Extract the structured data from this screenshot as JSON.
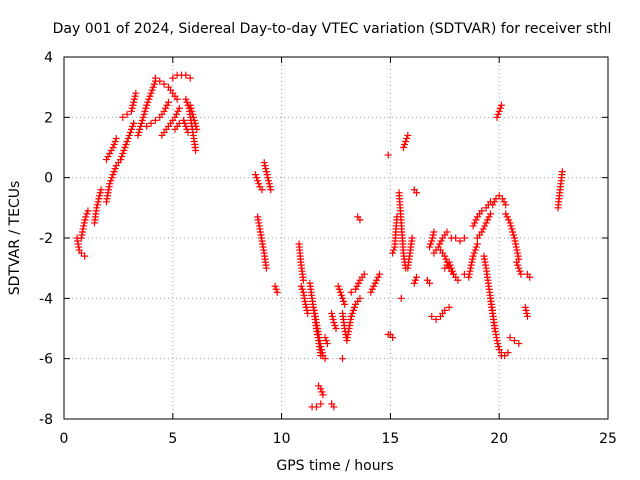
{
  "chart_data": {
    "type": "scatter",
    "title": "Day 001 of 2024, Sidereal Day-to-day VTEC variation (SDTVAR) for receiver sthl",
    "xlabel": "GPS time / hours",
    "ylabel": "SDTVAR / TECUs",
    "xlim": [
      0,
      25
    ],
    "ylim": [
      -8,
      4
    ],
    "xticks": [
      "0",
      "5",
      "10",
      "15",
      "20",
      "25"
    ],
    "yticks": [
      "-8",
      "-6",
      "-4",
      "-2",
      "0",
      "2",
      "4"
    ],
    "grid": true,
    "marker": "plus",
    "color": "#ff0000",
    "segments": [
      {
        "x": [
          0.6,
          0.7,
          0.8,
          0.95
        ],
        "y": [
          -2.0,
          -2.4,
          -2.5,
          -2.6
        ]
      },
      {
        "x": [
          0.8,
          0.9,
          1.0,
          1.1
        ],
        "y": [
          -2.0,
          -1.6,
          -1.3,
          -1.1
        ]
      },
      {
        "x": [
          1.4,
          1.5,
          1.6,
          1.7
        ],
        "y": [
          -1.5,
          -1.0,
          -0.7,
          -0.4
        ]
      },
      {
        "x": [
          1.95,
          2.1,
          2.25,
          2.4,
          2.6
        ],
        "y": [
          -0.8,
          -0.2,
          0.1,
          0.4,
          0.6
        ]
      },
      {
        "x": [
          1.95,
          2.1,
          2.25,
          2.4
        ],
        "y": [
          0.6,
          0.8,
          1.0,
          1.3
        ]
      },
      {
        "x": [
          2.6,
          2.8,
          3.0,
          3.2
        ],
        "y": [
          0.6,
          1.0,
          1.4,
          1.8
        ]
      },
      {
        "x": [
          2.7,
          2.9,
          3.1,
          3.3
        ],
        "y": [
          2.0,
          2.1,
          2.2,
          2.8
        ]
      },
      {
        "x": [
          3.4,
          3.6,
          3.8,
          4.0,
          4.2
        ],
        "y": [
          1.4,
          1.9,
          2.4,
          2.8,
          3.2
        ]
      },
      {
        "x": [
          3.8,
          4.0,
          4.2,
          4.4,
          4.6,
          4.8
        ],
        "y": [
          1.7,
          1.8,
          1.9,
          2.0,
          2.2,
          2.5
        ]
      },
      {
        "x": [
          4.2,
          4.4,
          4.6,
          4.8,
          5.0,
          5.2
        ],
        "y": [
          3.3,
          3.2,
          3.1,
          3.0,
          2.8,
          2.6
        ]
      },
      {
        "x": [
          4.5,
          4.7,
          4.9,
          5.1,
          5.3
        ],
        "y": [
          1.4,
          1.6,
          1.8,
          2.0,
          2.3
        ]
      },
      {
        "x": [
          5.0,
          5.2,
          5.4,
          5.6,
          5.8
        ],
        "y": [
          3.3,
          3.4,
          3.4,
          3.4,
          3.3
        ]
      },
      {
        "x": [
          5.1,
          5.3,
          5.5,
          5.7
        ],
        "y": [
          1.6,
          1.8,
          1.9,
          1.5
        ]
      },
      {
        "x": [
          5.6,
          5.75,
          5.9,
          6.05
        ],
        "y": [
          2.6,
          2.3,
          1.6,
          0.9
        ]
      },
      {
        "x": [
          5.8,
          5.95,
          6.1
        ],
        "y": [
          2.4,
          2.0,
          1.6
        ]
      },
      {
        "x": [
          8.8,
          8.9,
          9.0,
          9.1
        ],
        "y": [
          0.1,
          -0.1,
          -0.3,
          -0.4
        ]
      },
      {
        "x": [
          9.2,
          9.3,
          9.4,
          9.5
        ],
        "y": [
          0.5,
          0.2,
          -0.1,
          -0.4
        ]
      },
      {
        "x": [
          8.9,
          9.0,
          9.1,
          9.2,
          9.3
        ],
        "y": [
          -1.3,
          -1.7,
          -2.1,
          -2.5,
          -3.0
        ]
      },
      {
        "x": [
          9.7,
          9.8
        ],
        "y": [
          -3.6,
          -3.8
        ]
      },
      {
        "x": [
          10.8,
          10.9,
          11.0
        ],
        "y": [
          -2.2,
          -2.9,
          -3.4
        ]
      },
      {
        "x": [
          10.9,
          11.0,
          11.1,
          11.2
        ],
        "y": [
          -3.6,
          -3.8,
          -4.2,
          -4.5
        ]
      },
      {
        "x": [
          11.3,
          11.4,
          11.5,
          11.6,
          11.7,
          11.8
        ],
        "y": [
          -3.5,
          -4.0,
          -4.5,
          -5.0,
          -5.4,
          -5.9
        ]
      },
      {
        "x": [
          11.5,
          11.6,
          11.7,
          11.8,
          11.9,
          12.0
        ],
        "y": [
          -4.4,
          -4.8,
          -5.2,
          -5.6,
          -5.9,
          -6.0
        ]
      },
      {
        "x": [
          11.4,
          11.6,
          11.8
        ],
        "y": [
          -7.6,
          -7.6,
          -7.5
        ]
      },
      {
        "x": [
          11.7,
          11.8,
          11.9
        ],
        "y": [
          -6.9,
          -7.0,
          -7.2
        ]
      },
      {
        "x": [
          12.0,
          12.1
        ],
        "y": [
          -5.3,
          -5.5
        ]
      },
      {
        "x": [
          12.3,
          12.4,
          12.5
        ],
        "y": [
          -4.5,
          -4.8,
          -5.0
        ]
      },
      {
        "x": [
          12.3,
          12.4
        ],
        "y": [
          -7.5,
          -7.6
        ]
      },
      {
        "x": [
          12.6,
          12.7,
          12.8,
          12.9
        ],
        "y": [
          -3.6,
          -3.8,
          -4.0,
          -4.2
        ]
      },
      {
        "x": [
          12.8,
          12.9,
          13.0,
          13.1,
          13.2
        ],
        "y": [
          -4.5,
          -5.0,
          -5.4,
          -5.0,
          -4.6
        ]
      },
      {
        "x": [
          12.8
        ],
        "y": [
          -6.0
        ]
      },
      {
        "x": [
          13.2,
          13.4,
          13.6,
          13.8
        ],
        "y": [
          -3.8,
          -3.7,
          -3.4,
          -3.2
        ]
      },
      {
        "x": [
          13.2,
          13.4,
          13.6
        ],
        "y": [
          -4.6,
          -4.2,
          -4.0
        ]
      },
      {
        "x": [
          13.5,
          13.6
        ],
        "y": [
          -1.3,
          -1.4
        ]
      },
      {
        "x": [
          14.1,
          14.3,
          14.5
        ],
        "y": [
          -3.8,
          -3.5,
          -3.2
        ]
      },
      {
        "x": [
          14.9,
          15.0,
          15.1
        ],
        "y": [
          -5.2,
          -5.2,
          -5.3
        ]
      },
      {
        "x": [
          14.9
        ],
        "y": [
          0.75
        ]
      },
      {
        "x": [
          15.1,
          15.2,
          15.3
        ],
        "y": [
          -2.5,
          -2.3,
          -1.3
        ]
      },
      {
        "x": [
          15.4,
          15.5,
          15.6,
          15.7
        ],
        "y": [
          -0.5,
          -1.5,
          -2.5,
          -3.0
        ]
      },
      {
        "x": [
          15.6,
          15.7,
          15.8
        ],
        "y": [
          1.0,
          1.2,
          1.4
        ]
      },
      {
        "x": [
          15.5
        ],
        "y": [
          -4.0
        ]
      },
      {
        "x": [
          15.8,
          15.9,
          16.0
        ],
        "y": [
          -3.0,
          -2.5,
          -2.0
        ]
      },
      {
        "x": [
          16.1,
          16.2
        ],
        "y": [
          -0.4,
          -0.5
        ]
      },
      {
        "x": [
          16.1,
          16.2
        ],
        "y": [
          -3.5,
          -3.3
        ]
      },
      {
        "x": [
          16.8,
          16.9,
          17.0
        ],
        "y": [
          -2.3,
          -2.1,
          -1.8
        ]
      },
      {
        "x": [
          16.7,
          16.8
        ],
        "y": [
          -3.4,
          -3.5
        ]
      },
      {
        "x": [
          16.9,
          17.1,
          17.3,
          17.5,
          17.7
        ],
        "y": [
          -4.6,
          -4.7,
          -4.6,
          -4.4,
          -4.3
        ]
      },
      {
        "x": [
          17.0,
          17.2,
          17.4,
          17.6
        ],
        "y": [
          -2.5,
          -2.3,
          -2.0,
          -1.8
        ]
      },
      {
        "x": [
          17.3,
          17.5,
          17.7,
          17.9
        ],
        "y": [
          -2.4,
          -2.6,
          -3.0,
          -3.2
        ]
      },
      {
        "x": [
          17.5,
          17.7,
          17.9,
          18.1
        ],
        "y": [
          -3.0,
          -2.8,
          -3.2,
          -3.4
        ]
      },
      {
        "x": [
          17.8,
          18.0,
          18.2,
          18.4
        ],
        "y": [
          -2.0,
          -2.0,
          -2.1,
          -2.0
        ]
      },
      {
        "x": [
          18.4,
          18.6,
          18.8,
          19.0
        ],
        "y": [
          -3.2,
          -3.3,
          -2.6,
          -2.2
        ]
      },
      {
        "x": [
          18.8,
          19.0,
          19.2,
          19.4,
          19.6
        ],
        "y": [
          -1.6,
          -1.3,
          -1.1,
          -1.0,
          -0.8
        ]
      },
      {
        "x": [
          19.0,
          19.2,
          19.4,
          19.6
        ],
        "y": [
          -2.0,
          -1.8,
          -1.5,
          -1.2
        ]
      },
      {
        "x": [
          19.3,
          19.4,
          19.5,
          19.6,
          19.7,
          19.8
        ],
        "y": [
          -2.6,
          -3.0,
          -3.5,
          -4.0,
          -4.5,
          -5.0
        ]
      },
      {
        "x": [
          19.6,
          19.7,
          19.8,
          19.9,
          20.0,
          20.1
        ],
        "y": [
          -4.0,
          -4.5,
          -5.0,
          -5.4,
          -5.7,
          -5.8
        ]
      },
      {
        "x": [
          19.7,
          19.85,
          20.0,
          20.15,
          20.3
        ],
        "y": [
          -0.9,
          -0.7,
          -0.6,
          -0.7,
          -0.9
        ]
      },
      {
        "x": [
          19.9,
          20.0,
          20.1
        ],
        "y": [
          2.0,
          2.2,
          2.4
        ]
      },
      {
        "x": [
          20.1,
          20.25,
          20.4
        ],
        "y": [
          -5.9,
          -5.9,
          -5.8
        ]
      },
      {
        "x": [
          20.3,
          20.5,
          20.7,
          20.9
        ],
        "y": [
          -1.2,
          -1.5,
          -2.0,
          -2.7
        ]
      },
      {
        "x": [
          20.5,
          20.7,
          20.9
        ],
        "y": [
          -5.3,
          -5.4,
          -5.5
        ]
      },
      {
        "x": [
          20.8,
          20.9,
          21.0
        ],
        "y": [
          -2.8,
          -3.0,
          -3.2
        ]
      },
      {
        "x": [
          21.2,
          21.3
        ],
        "y": [
          -4.3,
          -4.6
        ]
      },
      {
        "x": [
          21.3,
          21.4
        ],
        "y": [
          -3.2,
          -3.3
        ]
      },
      {
        "x": [
          22.7,
          22.8,
          22.9
        ],
        "y": [
          -1.0,
          -0.4,
          0.2
        ]
      }
    ]
  }
}
